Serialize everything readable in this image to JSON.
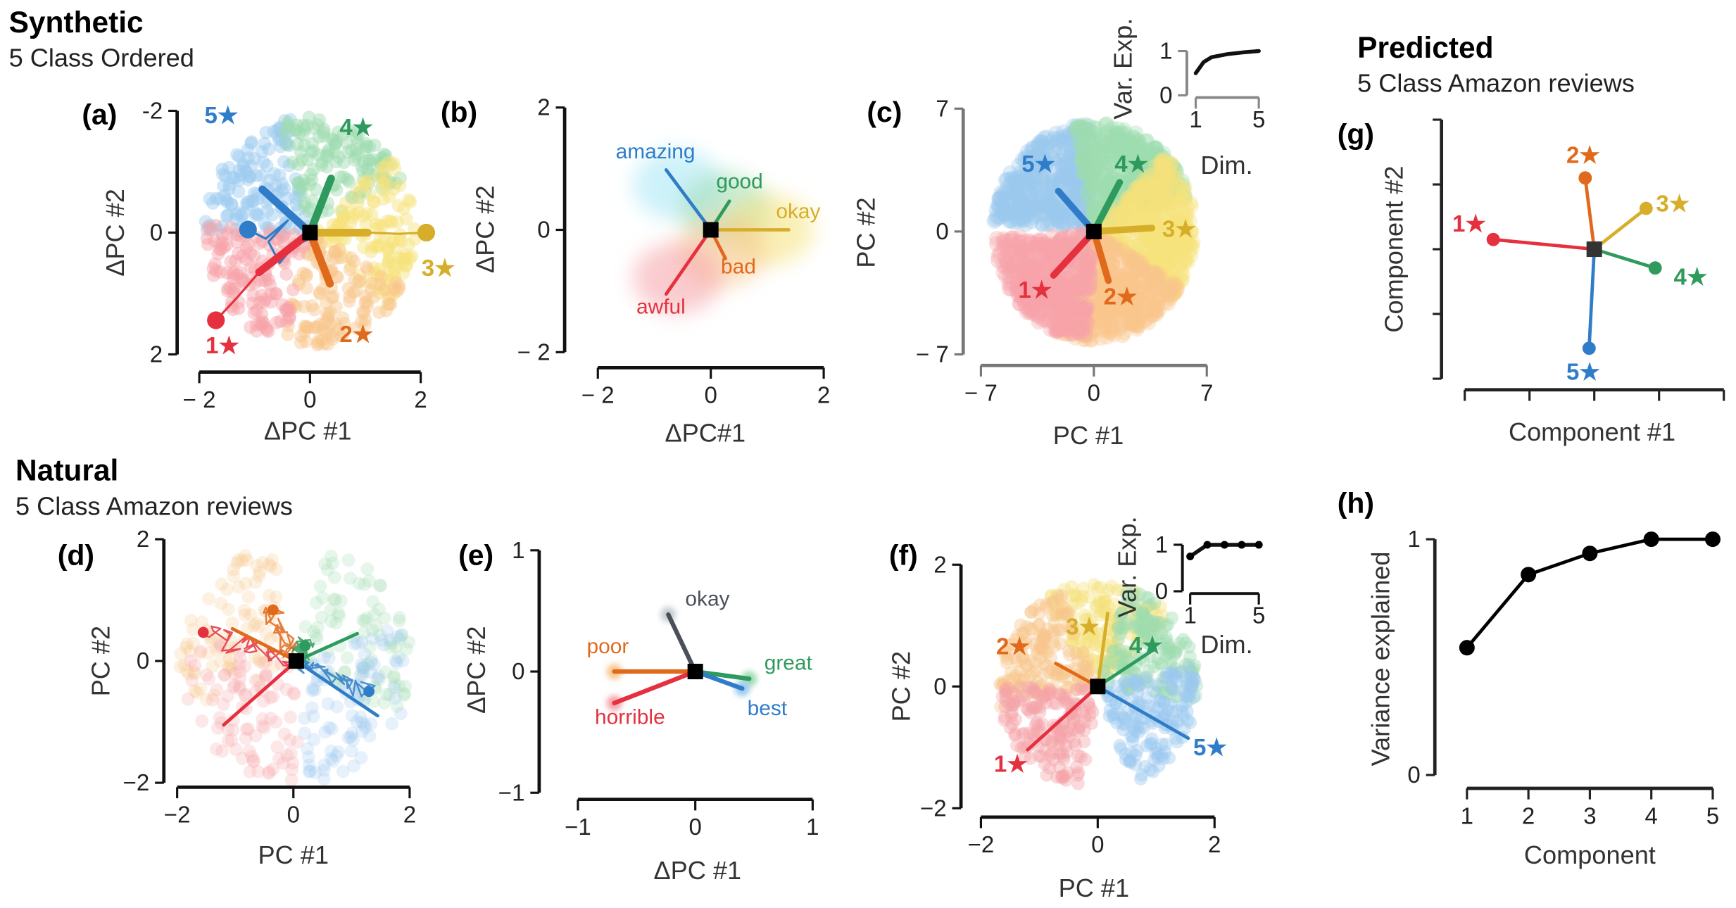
{
  "headers": {
    "synthetic": {
      "title": "Synthetic",
      "subtitle": "5 Class Ordered"
    },
    "natural": {
      "title": "Natural",
      "subtitle": "5 Class Amazon reviews"
    },
    "predicted": {
      "title": "Predicted",
      "subtitle": "5 Class Amazon reviews"
    }
  },
  "colors": {
    "red": "#e5303f",
    "orange": "#e0691b",
    "yellow": "#d6ae2a",
    "green": "#2f9a5d",
    "blue": "#2f7dc8",
    "gray": "#4a4f5a",
    "black": "#000000",
    "red_light": "#f6a2a8",
    "orange_light": "#f8c68c",
    "yellow_light": "#f6e27a",
    "green_light": "#9edcb0",
    "blue_light": "#9cc9ef",
    "gray_light": "#c8ccd2"
  },
  "chart_data": [
    {
      "panel": "(a)",
      "type": "line",
      "xlabel": "ΔPC #1",
      "ylabel": "ΔPC #2",
      "xlim": [
        -2,
        2
      ],
      "ylim": [
        -2,
        2
      ],
      "y_inverted": true,
      "xticks": [
        -2,
        0,
        2
      ],
      "xticklabels": [
        "− 2",
        "0",
        "2"
      ],
      "yticks": [
        -2,
        0,
        2
      ],
      "yticklabels": [
        "-2",
        "0",
        "2"
      ],
      "center": [
        0,
        0
      ],
      "arms": [
        {
          "label": "5★",
          "color": "blue",
          "end": [
            -0.86,
            -0.71
          ]
        },
        {
          "label": "4★",
          "color": "green",
          "end": [
            0.38,
            -0.89
          ]
        },
        {
          "label": "3★",
          "color": "yellow",
          "end": [
            1.04,
            0
          ]
        },
        {
          "label": "2★",
          "color": "orange",
          "end": [
            0.36,
            0.84
          ]
        },
        {
          "label": "1★",
          "color": "red",
          "end": [
            -0.92,
            0.65
          ]
        }
      ],
      "trajectories": [
        {
          "color": "red",
          "points": [
            [
              -0.92,
              0.65
            ],
            [
              -1.3,
              1.05
            ],
            [
              -1.7,
              1.44
            ]
          ]
        },
        {
          "color": "yellow",
          "points": [
            [
              1.04,
              0
            ],
            [
              1.6,
              0.02
            ],
            [
              2.1,
              0
            ]
          ]
        },
        {
          "color": "blue",
          "points": [
            [
              0,
              0.1
            ],
            [
              -0.3,
              0.22
            ],
            [
              -0.55,
              0.5
            ],
            [
              -0.75,
              0.15
            ],
            [
              -0.4,
              -0.2
            ],
            [
              -0.8,
              0.1
            ],
            [
              -1.12,
              -0.05
            ]
          ]
        }
      ]
    },
    {
      "panel": "(b)",
      "type": "line",
      "xlabel": "ΔPC#1",
      "ylabel": "ΔPC #2",
      "xlim": [
        -2,
        2
      ],
      "ylim": [
        -2,
        2
      ],
      "xticks": [
        -2,
        0,
        2
      ],
      "xticklabels": [
        "− 2",
        "0",
        "2"
      ],
      "yticks": [
        -2,
        0,
        2
      ],
      "yticklabels": [
        "− 2",
        "0",
        "2"
      ],
      "center": [
        0,
        0
      ],
      "arms": [
        {
          "label": "amazing",
          "color": "blue",
          "end": [
            -0.79,
            0.98
          ]
        },
        {
          "label": "good",
          "color": "green",
          "end": [
            0.33,
            0.47
          ]
        },
        {
          "label": "okay",
          "color": "yellow",
          "end": [
            1.38,
            0
          ]
        },
        {
          "label": "bad",
          "color": "orange",
          "end": [
            0.26,
            -0.47
          ]
        },
        {
          "label": "awful",
          "color": "red",
          "end": [
            -0.79,
            -1.05
          ]
        }
      ]
    },
    {
      "panel": "(c)",
      "type": "scatter",
      "xlabel": "PC #1",
      "ylabel": "PC #2",
      "xlim": [
        -7,
        7
      ],
      "ylim": [
        -7,
        7
      ],
      "xticks": [
        -7,
        0,
        7
      ],
      "xticklabels": [
        "− 7",
        "0",
        "7"
      ],
      "yticks": [
        -7,
        0,
        7
      ],
      "yticklabels": [
        "− 7",
        "0",
        "7"
      ],
      "center": [
        0,
        0
      ],
      "arms": [
        {
          "label": "5★",
          "color": "blue",
          "end": [
            -2.2,
            2.3
          ]
        },
        {
          "label": "4★",
          "color": "green",
          "end": [
            1.6,
            2.8
          ]
        },
        {
          "label": "3★",
          "color": "yellow",
          "end": [
            3.6,
            0.2
          ]
        },
        {
          "label": "2★",
          "color": "orange",
          "end": [
            0.9,
            -2.8
          ]
        },
        {
          "label": "1★",
          "color": "red",
          "end": [
            -2.5,
            -2.5
          ]
        }
      ],
      "inset": {
        "type": "line",
        "xlabel": "Dim.",
        "ylabel": "Var. Exp.",
        "xlim": [
          1,
          5
        ],
        "ylim": [
          0,
          1
        ],
        "xticks": [
          1,
          5
        ],
        "xticklabels": [
          "1",
          "5"
        ],
        "yticks": [
          0,
          1
        ],
        "yticklabels": [
          "0",
          "1"
        ],
        "x": [
          1,
          1.5,
          2,
          3,
          4,
          5
        ],
        "y": [
          0.5,
          0.75,
          0.86,
          0.93,
          0.97,
          1.0
        ]
      }
    },
    {
      "panel": "(d)",
      "type": "line",
      "xlabel": "PC #1",
      "ylabel": "PC #2",
      "xlim": [
        -2,
        2
      ],
      "ylim": [
        -2,
        2
      ],
      "xticks": [
        -2,
        0,
        2
      ],
      "xticklabels": [
        "−2",
        "0",
        "2"
      ],
      "yticks": [
        -2,
        0,
        2
      ],
      "yticklabels": [
        "−2",
        "0",
        "2"
      ],
      "center": [
        0.05,
        0
      ],
      "arms": [
        {
          "label": "",
          "color": "green",
          "end": [
            1.1,
            0.45
          ]
        },
        {
          "label": "",
          "color": "orange",
          "end": [
            -1.05,
            0.53
          ]
        },
        {
          "label": "",
          "color": "red",
          "end": [
            -1.2,
            -1.05
          ]
        },
        {
          "label": "",
          "color": "blue",
          "end": [
            1.45,
            -0.9
          ]
        }
      ],
      "trajectory_endpoints": [
        {
          "color": "red",
          "end": [
            -1.55,
            0.47
          ]
        },
        {
          "color": "orange",
          "end": [
            -0.35,
            0.84
          ]
        },
        {
          "color": "green",
          "end": [
            0.2,
            0.25
          ]
        },
        {
          "color": "blue",
          "end": [
            1.3,
            -0.5
          ]
        }
      ]
    },
    {
      "panel": "(e)",
      "type": "line",
      "xlabel": "ΔPC #1",
      "ylabel": "ΔPC #2",
      "xlim": [
        -1,
        1
      ],
      "ylim": [
        -1,
        1
      ],
      "xticks": [
        -1,
        0,
        1
      ],
      "xticklabels": [
        "−1",
        "0",
        "1"
      ],
      "yticks": [
        -1,
        0,
        1
      ],
      "yticklabels": [
        "−1",
        "0",
        "1"
      ],
      "center": [
        0,
        0
      ],
      "arms": [
        {
          "label": "okay",
          "color": "gray",
          "end": [
            -0.23,
            0.47
          ]
        },
        {
          "label": "poor",
          "color": "orange",
          "end": [
            -0.69,
            0
          ]
        },
        {
          "label": "great",
          "color": "green",
          "end": [
            0.46,
            -0.06
          ]
        },
        {
          "label": "best",
          "color": "blue",
          "end": [
            0.4,
            -0.14
          ]
        },
        {
          "label": "horrible",
          "color": "red",
          "end": [
            -0.69,
            -0.26
          ]
        }
      ]
    },
    {
      "panel": "(f)",
      "type": "scatter",
      "xlabel": "PC #1",
      "ylabel": "PC #2",
      "xlim": [
        -2,
        2
      ],
      "ylim": [
        -2,
        2
      ],
      "xticks": [
        -2,
        0,
        2
      ],
      "xticklabels": [
        "−2",
        "0",
        "2"
      ],
      "yticks": [
        -2,
        0,
        2
      ],
      "yticklabels": [
        "−2",
        "0",
        "2"
      ],
      "center": [
        0,
        0
      ],
      "arms": [
        {
          "label": "3★",
          "color": "yellow",
          "end": [
            0.17,
            1.2
          ]
        },
        {
          "label": "2★",
          "color": "orange",
          "end": [
            -0.72,
            0.38
          ]
        },
        {
          "label": "4★",
          "color": "green",
          "end": [
            0.95,
            0.6
          ]
        },
        {
          "label": "5★",
          "color": "blue",
          "end": [
            1.55,
            -0.85
          ]
        },
        {
          "label": "1★",
          "color": "red",
          "end": [
            -1.2,
            -1.04
          ]
        }
      ],
      "inset": {
        "type": "line",
        "xlabel": "Dim.",
        "ylabel": "Var. Exp.",
        "xlim": [
          1,
          5
        ],
        "ylim": [
          0,
          1
        ],
        "xticks": [
          1,
          5
        ],
        "xticklabels": [
          "1",
          "5"
        ],
        "yticks": [
          0,
          1
        ],
        "yticklabels": [
          "0",
          "1"
        ],
        "x": [
          1,
          2,
          3,
          4,
          5
        ],
        "y": [
          0.75,
          1.0,
          1.0,
          1.0,
          1.0
        ],
        "markers": true
      }
    },
    {
      "panel": "(g)",
      "type": "line",
      "xlabel": "Component #1",
      "ylabel": "Component #2",
      "xlim": [
        -2,
        2
      ],
      "ylim": [
        -2,
        2
      ],
      "xticks": [
        -2,
        -1,
        0,
        1,
        2
      ],
      "xticklabels": [],
      "yticks": [
        -2,
        -1,
        0,
        1,
        2
      ],
      "yticklabels": [],
      "center": [
        0,
        0
      ],
      "arms": [
        {
          "label": "2★",
          "color": "orange",
          "end": [
            -0.14,
            1.1
          ]
        },
        {
          "label": "3★",
          "color": "yellow",
          "end": [
            0.8,
            0.63
          ]
        },
        {
          "label": "4★",
          "color": "green",
          "end": [
            0.94,
            -0.29
          ]
        },
        {
          "label": "5★",
          "color": "blue",
          "end": [
            -0.08,
            -1.53
          ]
        },
        {
          "label": "1★",
          "color": "red",
          "end": [
            -1.56,
            0.15
          ]
        }
      ]
    },
    {
      "panel": "(h)",
      "type": "line",
      "xlabel": "Component",
      "ylabel": "Variance explained",
      "xlim": [
        1,
        5
      ],
      "ylim": [
        0,
        1
      ],
      "xticks": [
        1,
        2,
        3,
        4,
        5
      ],
      "xticklabels": [
        "1",
        "2",
        "3",
        "4",
        "5"
      ],
      "yticks": [
        0,
        1
      ],
      "yticklabels": [
        "0",
        "1"
      ],
      "x": [
        1,
        2,
        3,
        4,
        5
      ],
      "y": [
        0.54,
        0.85,
        0.94,
        1.0,
        1.0
      ]
    }
  ]
}
